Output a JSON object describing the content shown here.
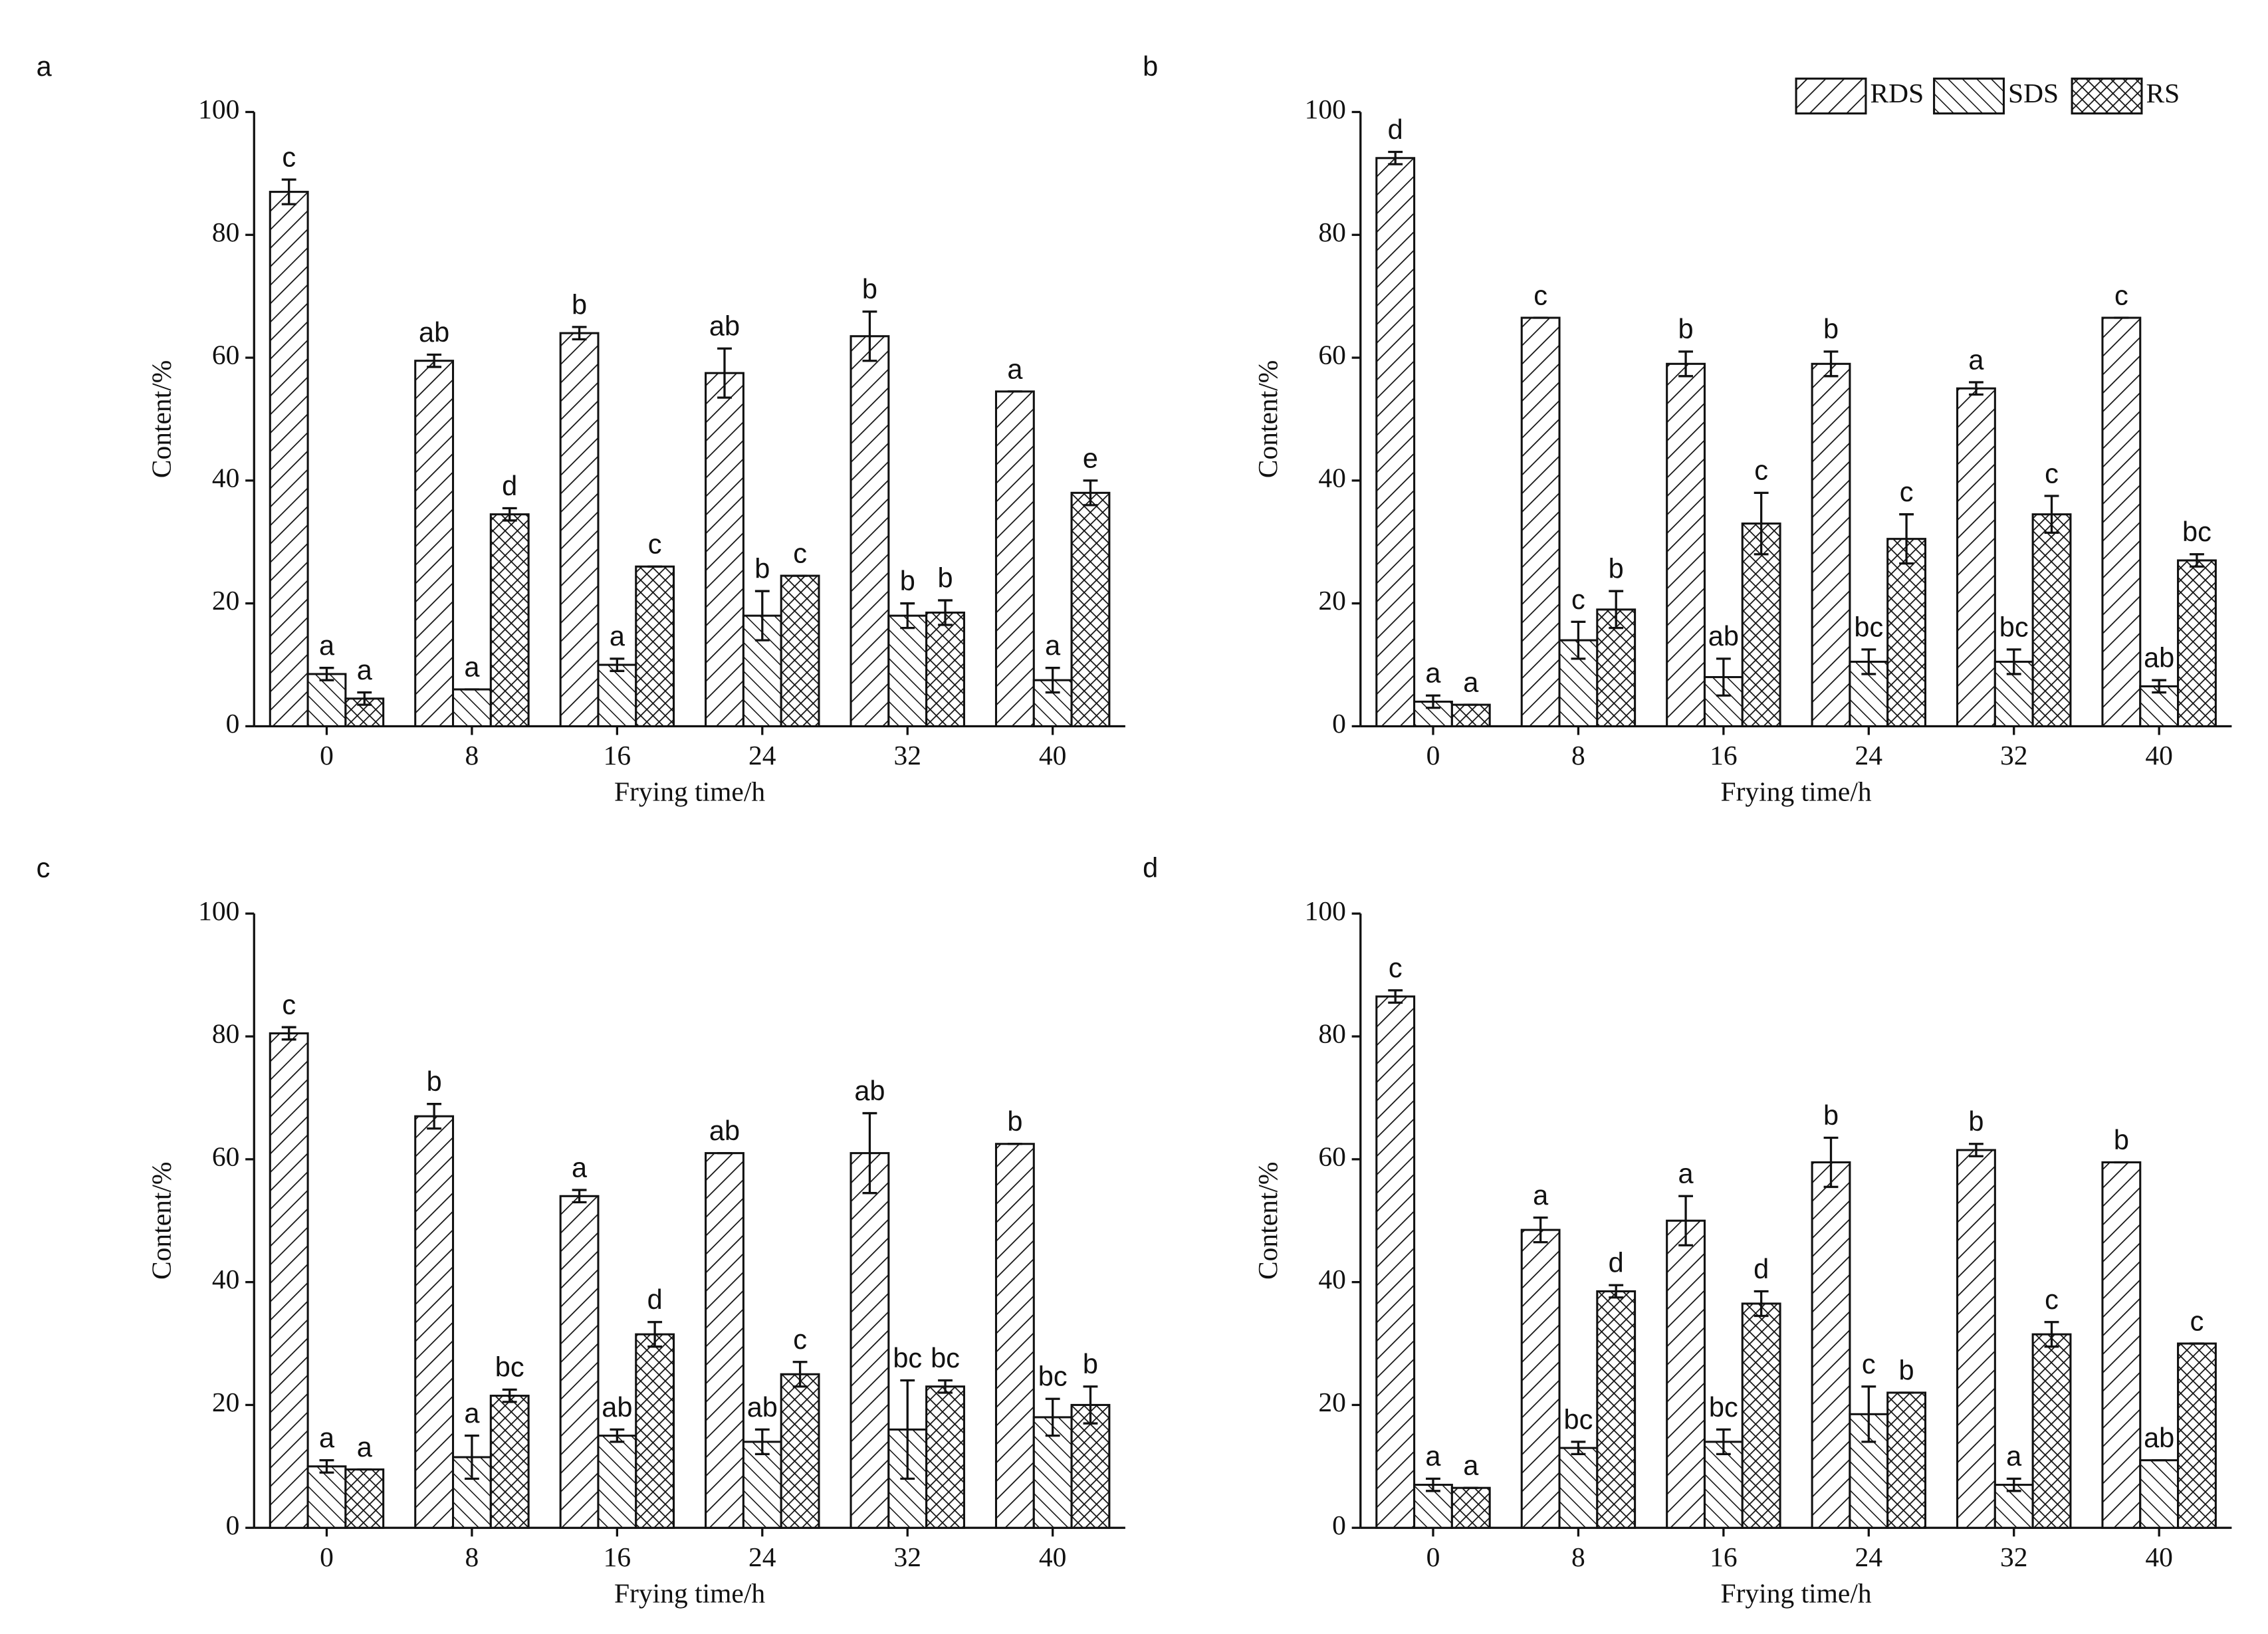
{
  "chart_data": [
    {
      "type": "bar",
      "panel": "a",
      "xlabel": "Frying time/h",
      "ylabel": "Content/%",
      "categories": [
        "0",
        "8",
        "16",
        "24",
        "32",
        "40"
      ],
      "ylim": [
        0,
        100
      ],
      "yticks": [
        0,
        20,
        40,
        60,
        80,
        100
      ],
      "series": [
        {
          "pattern": "hatch-right",
          "values": [
            87,
            59.5,
            64,
            57.5,
            63.5,
            54.5
          ],
          "errors": [
            2,
            1,
            1,
            4,
            4,
            0
          ],
          "letters": [
            "c",
            "ab",
            "b",
            "ab",
            "b",
            "a"
          ]
        },
        {
          "pattern": "hatch-left",
          "values": [
            8.5,
            6,
            10,
            18,
            18,
            7.5
          ],
          "errors": [
            1,
            0,
            1,
            4,
            2,
            2
          ],
          "letters": [
            "a",
            "a",
            "a",
            "b",
            "b",
            "a"
          ]
        },
        {
          "pattern": "crosshatch",
          "values": [
            4.5,
            34.5,
            26,
            24.5,
            18.5,
            38
          ],
          "errors": [
            1,
            1,
            0,
            0,
            2,
            2
          ],
          "letters": [
            "a",
            "d",
            "c",
            "c",
            "b",
            "e"
          ]
        }
      ]
    },
    {
      "type": "bar",
      "panel": "b",
      "xlabel": "Frying time/h",
      "ylabel": "Content/%",
      "legend": "upper right",
      "categories": [
        "0",
        "8",
        "16",
        "24",
        "32",
        "40"
      ],
      "ylim": [
        0,
        100
      ],
      "yticks": [
        0,
        20,
        40,
        60,
        80,
        100
      ],
      "series": [
        {
          "name": "RDS",
          "pattern": "hatch-right",
          "values": [
            92.5,
            66.5,
            59,
            59,
            55,
            66.5
          ],
          "errors": [
            1,
            0,
            2,
            2,
            1,
            0
          ],
          "letters": [
            "d",
            "c",
            "b",
            "b",
            "a",
            "c"
          ]
        },
        {
          "name": "SDS",
          "pattern": "hatch-left",
          "values": [
            4,
            14,
            8,
            10.5,
            10.5,
            6.5
          ],
          "errors": [
            1,
            3,
            3,
            2,
            2,
            1
          ],
          "letters": [
            "a",
            "c",
            "ab",
            "bc",
            "bc",
            "ab"
          ]
        },
        {
          "name": "RS",
          "pattern": "crosshatch",
          "values": [
            3.5,
            19,
            33,
            30.5,
            34.5,
            27
          ],
          "errors": [
            0,
            3,
            5,
            4,
            3,
            1
          ],
          "letters": [
            "a",
            "b",
            "c",
            "c",
            "c",
            "bc"
          ]
        }
      ]
    },
    {
      "type": "bar",
      "panel": "c",
      "xlabel": "Frying time/h",
      "ylabel": "Content/%",
      "categories": [
        "0",
        "8",
        "16",
        "24",
        "32",
        "40"
      ],
      "ylim": [
        0,
        100
      ],
      "yticks": [
        0,
        20,
        40,
        60,
        80,
        100
      ],
      "series": [
        {
          "pattern": "hatch-right",
          "values": [
            80.5,
            67,
            54,
            61,
            61,
            62.5
          ],
          "errors": [
            1,
            2,
            1,
            0,
            6.5,
            0
          ],
          "letters": [
            "c",
            "b",
            "a",
            "ab",
            "ab",
            "b"
          ]
        },
        {
          "pattern": "hatch-left",
          "values": [
            10,
            11.5,
            15,
            14,
            16,
            18
          ],
          "errors": [
            1,
            3.5,
            1,
            2,
            8,
            3
          ],
          "letters": [
            "a",
            "a",
            "ab",
            "ab",
            "bc",
            "bc"
          ]
        },
        {
          "pattern": "crosshatch",
          "values": [
            9.5,
            21.5,
            31.5,
            25,
            23,
            20
          ],
          "errors": [
            0,
            1,
            2,
            2,
            1,
            3
          ],
          "letters": [
            "a",
            "bc",
            "d",
            "c",
            "bc",
            "b"
          ]
        }
      ]
    },
    {
      "type": "bar",
      "panel": "d",
      "xlabel": "Frying time/h",
      "ylabel": "Content/%",
      "categories": [
        "0",
        "8",
        "16",
        "24",
        "32",
        "40"
      ],
      "ylim": [
        0,
        100
      ],
      "yticks": [
        0,
        20,
        40,
        60,
        80,
        100
      ],
      "series": [
        {
          "pattern": "hatch-right",
          "values": [
            86.5,
            48.5,
            50,
            59.5,
            61.5,
            59.5
          ],
          "errors": [
            1,
            2,
            4,
            4,
            1,
            0
          ],
          "letters": [
            "c",
            "a",
            "a",
            "b",
            "b",
            "b"
          ]
        },
        {
          "pattern": "hatch-left",
          "values": [
            7,
            13,
            14,
            18.5,
            7,
            11
          ],
          "errors": [
            1,
            1,
            2,
            4.5,
            1,
            0
          ],
          "letters": [
            "a",
            "bc",
            "bc",
            "c",
            "a",
            "ab"
          ]
        },
        {
          "pattern": "crosshatch",
          "values": [
            6.5,
            38.5,
            36.5,
            22,
            31.5,
            30
          ],
          "errors": [
            0,
            1,
            2,
            0,
            2,
            0
          ],
          "letters": [
            "a",
            "d",
            "d",
            "b",
            "c",
            "c"
          ]
        }
      ]
    }
  ]
}
